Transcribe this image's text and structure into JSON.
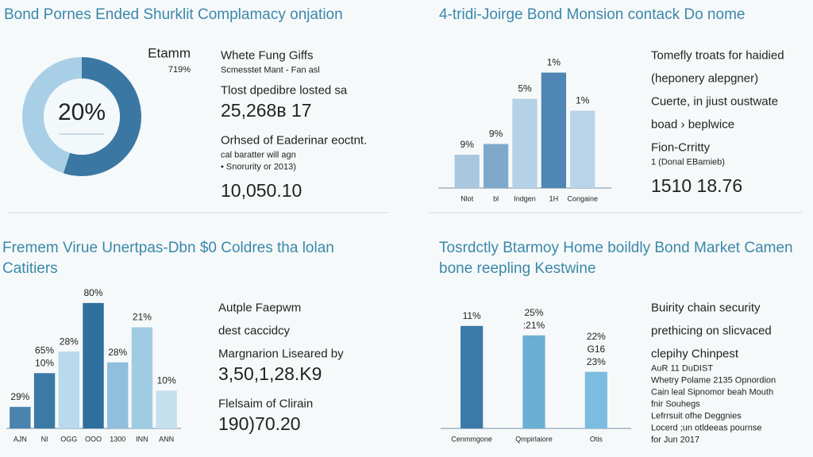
{
  "chart_data": [
    {
      "type": "pie",
      "title": "Bond Pornes Ended Shurklit Complamacy onjation",
      "labels": [
        "Etamm",
        "719%"
      ],
      "center_label": "20%",
      "values": [
        55,
        45
      ],
      "colors": [
        "#3a78a3",
        "#a9cfe6"
      ],
      "notes": [
        {
          "text": "Whete Fung Giffs",
          "size": "medium"
        },
        {
          "text": "Scmesstet Mant - Fan asl",
          "size": "small"
        },
        {
          "text": "Tlost dpedibre losted sa",
          "size": "medium"
        },
        {
          "text": "25,268ʙ 17",
          "size": "large"
        },
        {
          "text": "Orhsed of Eaderinar eoctnt.",
          "size": "medium"
        },
        {
          "text": "cal baratter will agn",
          "size": "small"
        },
        {
          "text": "• Snorurity or 2013)",
          "size": "small"
        },
        {
          "text": "10,050.10",
          "size": "large"
        }
      ]
    },
    {
      "type": "bar",
      "title": "4-tridi-Joirge Bond  Monsion contack Do nome",
      "categories": [
        "Nlot",
        "bl",
        "Indgen",
        "1H",
        "Congaine"
      ],
      "values": [
        28,
        37,
        75,
        97,
        65
      ],
      "ylim": [
        0,
        100
      ],
      "colors": [
        "#a9c8e0",
        "#7fa9cc",
        "#b6d1e6",
        "#4f86b3",
        "#b9d4e8"
      ],
      "annotations": [
        [
          "9%"
        ],
        [
          "9%"
        ],
        [
          "5%"
        ],
        [
          "1%"
        ],
        [
          "1%"
        ]
      ],
      "notes": [
        {
          "text": "Tomefly troats for haidied",
          "size": "medium"
        },
        {
          "text": "(heponery alepgner)",
          "size": "medium"
        },
        {
          "text": "Cuerte, in jiust oustwate",
          "size": "medium"
        },
        {
          "text": "boad › beplwice",
          "size": "medium"
        },
        {
          "text": "Fion-Crritty",
          "size": "medium"
        },
        {
          "text": "1 (Donal EBamieb)",
          "size": "small"
        },
        {
          "text": "1510 18.76",
          "size": "large"
        }
      ]
    },
    {
      "type": "bar",
      "title": "Fremem Virue Unertpas-Dbn $0 Coldres tha lolan Catitiers",
      "categories": [
        "AJN",
        "NI",
        "OGG",
        "OOO",
        "1300",
        "INN",
        "ANN"
      ],
      "values": [
        16,
        41,
        57,
        93,
        49,
        75,
        28
      ],
      "ylim": [
        0,
        100
      ],
      "colors": [
        "#4a84ad",
        "#3c7aa6",
        "#b9d9ec",
        "#2f6f9e",
        "#8fbfdc",
        "#9fcbe3",
        "#c4e0ef"
      ],
      "annotations": [
        [
          "29%"
        ],
        [
          "65%",
          "10%"
        ],
        [
          "28%"
        ],
        [
          "80%"
        ],
        [
          "28%"
        ],
        [
          "21%"
        ],
        [
          "10%"
        ]
      ],
      "notes": [
        {
          "text": "Autple Faepwm",
          "size": "medium"
        },
        {
          "text": "dest caccidcy",
          "size": "medium"
        },
        {
          "text": "Margnarion Liseared by",
          "size": "medium"
        },
        {
          "text": "3,50,1,28.K9",
          "size": "large"
        },
        {
          "text": "Flelsaim of Clirain",
          "size": "medium"
        },
        {
          "text": "190)70.20",
          "size": "large"
        }
      ]
    },
    {
      "type": "bar",
      "title": "Tosrdctly Btarmoy Home boildly Bond Market Camen bone reepling Kestwine",
      "categories": [
        "Cenmmgone",
        "Qmpirlaiore",
        "Otis"
      ],
      "values": [
        76,
        69,
        42
      ],
      "ylim": [
        0,
        100
      ],
      "colors": [
        "#3a7aa8",
        "#6aaed3",
        "#7bbde0"
      ],
      "annotations": [
        [
          "11%"
        ],
        [
          "25%",
          ":21%"
        ],
        [
          "22%",
          "G16",
          "23%"
        ]
      ],
      "notes": [
        {
          "text": "Buirity chain security",
          "size": "medium"
        },
        {
          "text": "prethicing on slicvaced",
          "size": "medium"
        },
        {
          "text": "clepihy Chinpest",
          "size": "medium"
        },
        {
          "text": "AuR 11 DuDIST",
          "size": "small"
        },
        {
          "text": "Whetry Polame 2135 Opnordion",
          "size": "small"
        },
        {
          "text": "Cain leal Sipnomor beah Mouth",
          "size": "small"
        },
        {
          "text": "fnir Souhegs",
          "size": "small"
        },
        {
          "text": "Lefrrsuit ofhe Deggnies",
          "size": "small"
        },
        {
          "text": "Locerd ;un otldeeas pournse",
          "size": "small"
        },
        {
          "text": "for Jun 2017",
          "size": "small"
        }
      ]
    }
  ]
}
